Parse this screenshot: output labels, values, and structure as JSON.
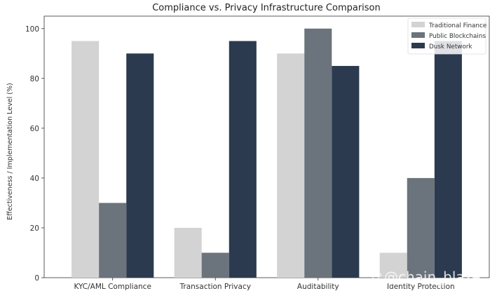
{
  "chart_data": {
    "type": "bar",
    "title": "Compliance vs. Privacy Infrastructure Comparison",
    "xlabel": "",
    "ylabel": "Effectiveness / Implementation Level (%)",
    "ylim": [
      0,
      100
    ],
    "yticks": [
      0,
      20,
      40,
      60,
      80,
      100
    ],
    "categories": [
      "KYC/AML Compliance",
      "Transaction Privacy",
      "Auditability",
      "Identity Protection"
    ],
    "series": [
      {
        "name": "Traditional Finance",
        "color": "#d3d3d3",
        "values": [
          95,
          20,
          90,
          10
        ]
      },
      {
        "name": "Public Blockchains",
        "color": "#6b737c",
        "values": [
          30,
          10,
          100,
          40
        ]
      },
      {
        "name": "Dusk Network",
        "color": "#2b3a4e",
        "values": [
          90,
          95,
          85,
          95
        ]
      }
    ],
    "grid": false,
    "legend_position": "top-right"
  },
  "watermark": {
    "text": "@chain_blaze"
  }
}
